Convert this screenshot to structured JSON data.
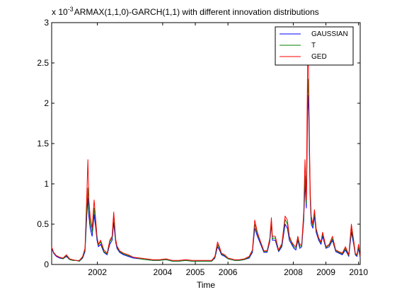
{
  "chart_data": {
    "type": "line",
    "title": "ARMAX(1,1,0)-GARCH(1,1) with different innovation distributions",
    "y_exponent_prefix": "x 10",
    "y_exponent_power": "-3",
    "xlabel": "Time",
    "ylabel": "",
    "xlim": [
      2000.6,
      2010.05
    ],
    "ylim": [
      0,
      3
    ],
    "x_ticks": [
      2002,
      2004,
      2005,
      2006,
      2008,
      2009,
      2010
    ],
    "x_tick_labels": [
      "2002",
      "2004",
      "2005",
      "2006",
      "2008",
      "2009",
      "2010"
    ],
    "y_ticks": [
      0,
      0.5,
      1,
      1.5,
      2,
      2.5,
      3
    ],
    "y_tick_labels": [
      "0",
      "0.5",
      "1",
      "1.5",
      "2",
      "2.5",
      "3"
    ],
    "grid": false,
    "legend_position": "top-right",
    "series": [
      {
        "name": "GAUSSIAN",
        "color": "#0000ff",
        "x": [
          2000.6,
          2000.66,
          2000.74,
          2000.84,
          2000.95,
          2001.05,
          2001.15,
          2001.25,
          2001.35,
          2001.45,
          2001.55,
          2001.62,
          2001.68,
          2001.71,
          2001.74,
          2001.78,
          2001.84,
          2001.9,
          2001.95,
          2001.99,
          2002.03,
          2002.1,
          2002.2,
          2002.3,
          2002.38,
          2002.45,
          2002.5,
          2002.53,
          2002.56,
          2002.6,
          2002.68,
          2002.8,
          2002.95,
          2003.1,
          2003.3,
          2003.5,
          2003.7,
          2003.9,
          2004.1,
          2004.3,
          2004.5,
          2004.7,
          2004.9,
          2005.1,
          2005.3,
          2005.5,
          2005.6,
          2005.68,
          2005.74,
          2005.8,
          2005.9,
          2006.0,
          2006.1,
          2006.2,
          2006.35,
          2006.5,
          2006.65,
          2006.75,
          2006.82,
          2006.9,
          2007.0,
          2007.1,
          2007.2,
          2007.28,
          2007.33,
          2007.36,
          2007.45,
          2007.55,
          2007.65,
          2007.75,
          2007.82,
          2007.88,
          2007.95,
          2008.02,
          2008.08,
          2008.14,
          2008.2,
          2008.26,
          2008.32,
          2008.36,
          2008.4,
          2008.42,
          2008.44,
          2008.46,
          2008.48,
          2008.5,
          2008.52,
          2008.55,
          2008.6,
          2008.65,
          2008.7,
          2008.78,
          2008.85,
          2008.9,
          2009.0,
          2009.1,
          2009.2,
          2009.3,
          2009.4,
          2009.5,
          2009.6,
          2009.7,
          2009.78,
          2009.85,
          2009.9,
          2009.95,
          2010.0,
          2010.05
        ],
        "y": [
          0.2,
          0.14,
          0.1,
          0.08,
          0.07,
          0.1,
          0.06,
          0.05,
          0.05,
          0.04,
          0.08,
          0.16,
          0.62,
          0.82,
          0.6,
          0.45,
          0.35,
          0.62,
          0.45,
          0.3,
          0.22,
          0.25,
          0.15,
          0.12,
          0.25,
          0.3,
          0.52,
          0.4,
          0.28,
          0.2,
          0.15,
          0.12,
          0.1,
          0.08,
          0.07,
          0.06,
          0.05,
          0.05,
          0.06,
          0.04,
          0.04,
          0.05,
          0.04,
          0.04,
          0.04,
          0.04,
          0.08,
          0.22,
          0.18,
          0.12,
          0.1,
          0.07,
          0.06,
          0.05,
          0.05,
          0.06,
          0.08,
          0.15,
          0.45,
          0.35,
          0.25,
          0.15,
          0.15,
          0.28,
          0.5,
          0.3,
          0.3,
          0.16,
          0.22,
          0.5,
          0.45,
          0.3,
          0.25,
          0.2,
          0.18,
          0.3,
          0.2,
          0.22,
          0.55,
          1.0,
          0.7,
          1.3,
          1.9,
          2.1,
          1.7,
          1.2,
          0.8,
          0.5,
          0.45,
          0.6,
          0.4,
          0.3,
          0.25,
          0.35,
          0.2,
          0.22,
          0.3,
          0.16,
          0.14,
          0.12,
          0.18,
          0.1,
          0.4,
          0.25,
          0.12,
          0.1,
          0.2,
          0.08
        ]
      },
      {
        "name": "T",
        "color": "#008000",
        "x": [
          2000.6,
          2000.66,
          2000.74,
          2000.84,
          2000.95,
          2001.05,
          2001.15,
          2001.25,
          2001.35,
          2001.45,
          2001.55,
          2001.62,
          2001.68,
          2001.71,
          2001.74,
          2001.78,
          2001.84,
          2001.9,
          2001.95,
          2001.99,
          2002.03,
          2002.1,
          2002.2,
          2002.3,
          2002.38,
          2002.45,
          2002.5,
          2002.53,
          2002.56,
          2002.6,
          2002.68,
          2002.8,
          2002.95,
          2003.1,
          2003.3,
          2003.5,
          2003.7,
          2003.9,
          2004.1,
          2004.3,
          2004.5,
          2004.7,
          2004.9,
          2005.1,
          2005.3,
          2005.5,
          2005.6,
          2005.68,
          2005.74,
          2005.8,
          2005.9,
          2006.0,
          2006.1,
          2006.2,
          2006.35,
          2006.5,
          2006.65,
          2006.75,
          2006.82,
          2006.9,
          2007.0,
          2007.1,
          2007.2,
          2007.28,
          2007.33,
          2007.36,
          2007.45,
          2007.55,
          2007.65,
          2007.75,
          2007.82,
          2007.88,
          2007.95,
          2008.02,
          2008.08,
          2008.14,
          2008.2,
          2008.26,
          2008.32,
          2008.36,
          2008.4,
          2008.42,
          2008.44,
          2008.46,
          2008.48,
          2008.5,
          2008.52,
          2008.55,
          2008.6,
          2008.65,
          2008.7,
          2008.78,
          2008.85,
          2008.9,
          2009.0,
          2009.1,
          2009.2,
          2009.3,
          2009.4,
          2009.5,
          2009.6,
          2009.7,
          2009.78,
          2009.85,
          2009.9,
          2009.95,
          2010.0,
          2010.05
        ],
        "y": [
          0.21,
          0.15,
          0.11,
          0.09,
          0.07,
          0.11,
          0.06,
          0.05,
          0.05,
          0.04,
          0.09,
          0.18,
          0.7,
          0.95,
          0.68,
          0.52,
          0.4,
          0.7,
          0.5,
          0.33,
          0.24,
          0.28,
          0.16,
          0.13,
          0.28,
          0.33,
          0.6,
          0.45,
          0.3,
          0.22,
          0.16,
          0.13,
          0.11,
          0.09,
          0.07,
          0.06,
          0.05,
          0.05,
          0.06,
          0.04,
          0.04,
          0.05,
          0.04,
          0.04,
          0.04,
          0.04,
          0.09,
          0.25,
          0.2,
          0.13,
          0.11,
          0.07,
          0.06,
          0.05,
          0.05,
          0.06,
          0.09,
          0.17,
          0.5,
          0.38,
          0.27,
          0.16,
          0.16,
          0.3,
          0.54,
          0.32,
          0.33,
          0.17,
          0.24,
          0.56,
          0.5,
          0.33,
          0.27,
          0.22,
          0.2,
          0.32,
          0.22,
          0.24,
          0.6,
          1.1,
          0.75,
          1.45,
          2.1,
          2.3,
          1.85,
          1.3,
          0.85,
          0.55,
          0.48,
          0.64,
          0.43,
          0.32,
          0.27,
          0.38,
          0.21,
          0.24,
          0.32,
          0.17,
          0.15,
          0.13,
          0.2,
          0.11,
          0.45,
          0.27,
          0.13,
          0.11,
          0.22,
          0.09
        ]
      },
      {
        "name": "GED",
        "color": "#ff0000",
        "x": [
          2000.6,
          2000.66,
          2000.74,
          2000.84,
          2000.95,
          2001.05,
          2001.15,
          2001.25,
          2001.35,
          2001.45,
          2001.55,
          2001.62,
          2001.68,
          2001.71,
          2001.74,
          2001.78,
          2001.84,
          2001.9,
          2001.95,
          2001.99,
          2002.03,
          2002.1,
          2002.2,
          2002.3,
          2002.38,
          2002.45,
          2002.5,
          2002.53,
          2002.56,
          2002.6,
          2002.68,
          2002.8,
          2002.95,
          2003.1,
          2003.3,
          2003.5,
          2003.7,
          2003.9,
          2004.1,
          2004.3,
          2004.5,
          2004.7,
          2004.9,
          2005.1,
          2005.3,
          2005.5,
          2005.6,
          2005.68,
          2005.74,
          2005.8,
          2005.9,
          2006.0,
          2006.1,
          2006.2,
          2006.35,
          2006.5,
          2006.65,
          2006.75,
          2006.82,
          2006.9,
          2007.0,
          2007.1,
          2007.2,
          2007.28,
          2007.33,
          2007.36,
          2007.45,
          2007.55,
          2007.65,
          2007.75,
          2007.82,
          2007.88,
          2007.95,
          2008.02,
          2008.08,
          2008.14,
          2008.2,
          2008.26,
          2008.32,
          2008.36,
          2008.4,
          2008.42,
          2008.44,
          2008.46,
          2008.48,
          2008.5,
          2008.52,
          2008.55,
          2008.6,
          2008.65,
          2008.7,
          2008.78,
          2008.85,
          2008.9,
          2009.0,
          2009.1,
          2009.2,
          2009.3,
          2009.4,
          2009.5,
          2009.6,
          2009.7,
          2009.78,
          2009.85,
          2009.9,
          2009.95,
          2010.0,
          2010.05
        ],
        "y": [
          0.22,
          0.15,
          0.11,
          0.09,
          0.08,
          0.12,
          0.07,
          0.06,
          0.05,
          0.05,
          0.1,
          0.2,
          0.9,
          1.3,
          0.8,
          0.6,
          0.45,
          0.8,
          0.55,
          0.35,
          0.25,
          0.3,
          0.18,
          0.14,
          0.3,
          0.35,
          0.65,
          0.5,
          0.32,
          0.23,
          0.17,
          0.14,
          0.12,
          0.09,
          0.08,
          0.07,
          0.06,
          0.06,
          0.07,
          0.05,
          0.05,
          0.06,
          0.05,
          0.05,
          0.05,
          0.05,
          0.1,
          0.28,
          0.22,
          0.14,
          0.12,
          0.08,
          0.07,
          0.06,
          0.06,
          0.07,
          0.1,
          0.18,
          0.55,
          0.4,
          0.28,
          0.17,
          0.17,
          0.32,
          0.58,
          0.35,
          0.35,
          0.18,
          0.26,
          0.6,
          0.55,
          0.35,
          0.28,
          0.24,
          0.22,
          0.35,
          0.24,
          0.26,
          0.65,
          1.3,
          0.8,
          1.7,
          2.5,
          2.6,
          2.0,
          1.4,
          0.9,
          0.6,
          0.5,
          0.68,
          0.45,
          0.33,
          0.28,
          0.4,
          0.22,
          0.25,
          0.35,
          0.18,
          0.16,
          0.14,
          0.22,
          0.12,
          0.5,
          0.3,
          0.14,
          0.12,
          0.25,
          0.1
        ]
      }
    ]
  }
}
